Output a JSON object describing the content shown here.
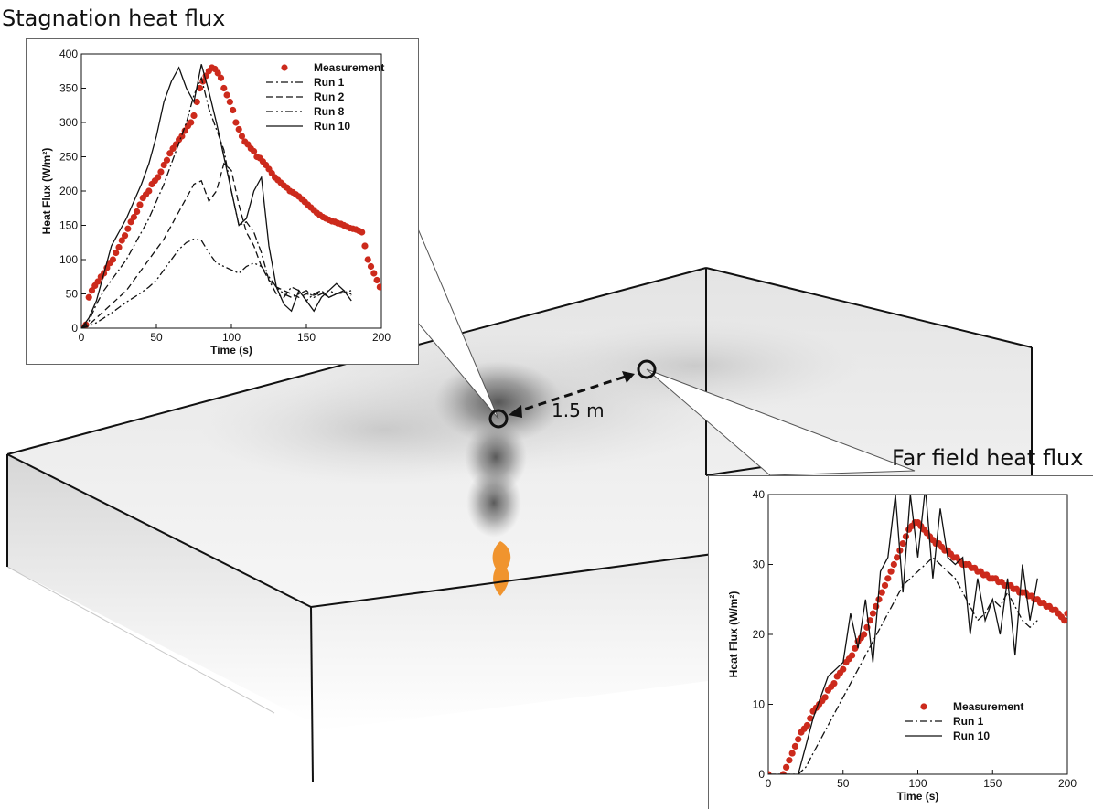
{
  "captions": {
    "stagnation": "Stagnation heat flux",
    "far_field": "Far field heat flux"
  },
  "distance_label": "1.5 m",
  "colors": {
    "measurement": "#cc2a1c",
    "line": "#111111",
    "flame": "#f08a18",
    "smoke": "#555555"
  },
  "chart_data": [
    {
      "type": "line",
      "title": "Stagnation heat flux",
      "xlabel": "Time (s)",
      "ylabel": "Heat Flux (W/m²)",
      "xlim": [
        0,
        200
      ],
      "ylim": [
        0,
        400
      ],
      "xticks": [
        0,
        50,
        100,
        150,
        200
      ],
      "yticks": [
        0,
        50,
        100,
        150,
        200,
        250,
        300,
        350,
        400
      ],
      "legend_position": "top-right",
      "series": [
        {
          "name": "Measurement",
          "style": "markers",
          "x": [
            0,
            3,
            5,
            7,
            9,
            11,
            13,
            15,
            17,
            19,
            21,
            23,
            25,
            27,
            29,
            31,
            33,
            35,
            37,
            39,
            41,
            43,
            45,
            47,
            49,
            51,
            53,
            55,
            57,
            59,
            61,
            63,
            65,
            67,
            69,
            71,
            73,
            75,
            77,
            79,
            81,
            83,
            85,
            87,
            89,
            91,
            93,
            95,
            97,
            99,
            101,
            103,
            105,
            107,
            109,
            111,
            113,
            115,
            117,
            119,
            121,
            123,
            125,
            127,
            129,
            131,
            133,
            135,
            137,
            139,
            141,
            143,
            145,
            147,
            149,
            151,
            153,
            155,
            157,
            159,
            161,
            163,
            165,
            167,
            169,
            171,
            173,
            175,
            177,
            179,
            181,
            183,
            185,
            187,
            189,
            191,
            193,
            195,
            197,
            199
          ],
          "y": [
            0,
            5,
            45,
            55,
            62,
            68,
            75,
            80,
            88,
            95,
            100,
            110,
            118,
            128,
            135,
            145,
            155,
            162,
            170,
            180,
            190,
            195,
            200,
            210,
            215,
            220,
            228,
            238,
            245,
            255,
            262,
            268,
            275,
            280,
            288,
            295,
            300,
            310,
            330,
            350,
            360,
            368,
            375,
            380,
            378,
            372,
            365,
            350,
            340,
            330,
            318,
            300,
            290,
            280,
            272,
            268,
            262,
            258,
            250,
            248,
            243,
            238,
            232,
            226,
            220,
            216,
            212,
            208,
            205,
            200,
            198,
            195,
            192,
            188,
            184,
            180,
            176,
            172,
            168,
            165,
            162,
            160,
            158,
            156,
            155,
            153,
            152,
            150,
            148,
            146,
            145,
            144,
            142,
            140,
            120,
            100,
            90,
            80,
            70,
            60
          ]
        },
        {
          "name": "Run 1",
          "style": "dashdot",
          "x": [
            0,
            5,
            10,
            15,
            20,
            25,
            30,
            35,
            40,
            45,
            50,
            55,
            60,
            65,
            70,
            75,
            80,
            85,
            90,
            95,
            100,
            105,
            110,
            115,
            120,
            125,
            130,
            135,
            140,
            145,
            150,
            155,
            160,
            165,
            170,
            175,
            180
          ],
          "y": [
            0,
            10,
            35,
            55,
            70,
            85,
            100,
            120,
            140,
            160,
            185,
            210,
            240,
            270,
            300,
            340,
            365,
            320,
            290,
            260,
            200,
            150,
            155,
            140,
            110,
            70,
            50,
            45,
            60,
            55,
            40,
            50,
            55,
            45,
            50,
            55,
            48
          ]
        },
        {
          "name": "Run 2",
          "style": "dashed",
          "x": [
            0,
            5,
            10,
            15,
            20,
            25,
            30,
            35,
            40,
            45,
            50,
            55,
            60,
            65,
            70,
            75,
            80,
            85,
            90,
            95,
            100,
            105,
            110,
            115,
            120,
            125,
            130,
            135,
            140,
            145,
            150,
            155,
            160,
            165,
            170,
            175,
            180
          ],
          "y": [
            0,
            5,
            15,
            25,
            35,
            45,
            55,
            70,
            85,
            100,
            115,
            130,
            150,
            170,
            190,
            210,
            215,
            185,
            200,
            240,
            230,
            180,
            140,
            120,
            90,
            70,
            60,
            55,
            50,
            45,
            50,
            48,
            52,
            45,
            50,
            52,
            50
          ]
        },
        {
          "name": "Run 8",
          "style": "dashdotdot",
          "x": [
            0,
            5,
            10,
            15,
            20,
            25,
            30,
            35,
            40,
            45,
            50,
            55,
            60,
            65,
            70,
            75,
            80,
            85,
            90,
            95,
            100,
            105,
            110,
            115,
            120,
            125,
            130,
            135,
            140,
            145,
            150,
            155,
            160,
            165,
            170,
            175,
            180
          ],
          "y": [
            0,
            3,
            8,
            15,
            22,
            30,
            38,
            45,
            52,
            60,
            70,
            85,
            100,
            115,
            125,
            130,
            128,
            110,
            95,
            90,
            85,
            80,
            90,
            95,
            90,
            75,
            60,
            50,
            45,
            50,
            55,
            45,
            50,
            55,
            50,
            52,
            55
          ]
        },
        {
          "name": "Run 10",
          "style": "solid",
          "x": [
            0,
            5,
            10,
            15,
            20,
            25,
            30,
            35,
            40,
            45,
            50,
            55,
            60,
            65,
            70,
            75,
            80,
            85,
            90,
            95,
            100,
            105,
            110,
            115,
            120,
            125,
            130,
            135,
            140,
            145,
            150,
            155,
            160,
            165,
            170,
            175,
            180
          ],
          "y": [
            0,
            15,
            40,
            80,
            120,
            140,
            160,
            185,
            210,
            240,
            280,
            330,
            360,
            380,
            350,
            330,
            385,
            345,
            300,
            250,
            200,
            150,
            160,
            200,
            220,
            120,
            60,
            35,
            25,
            55,
            40,
            25,
            45,
            55,
            65,
            55,
            40
          ]
        }
      ]
    },
    {
      "type": "line",
      "title": "Far field heat flux",
      "xlabel": "Time (s)",
      "ylabel": "Heat Flux (W/m²)",
      "xlim": [
        0,
        200
      ],
      "ylim": [
        0,
        40
      ],
      "xticks": [
        0,
        50,
        100,
        150,
        200
      ],
      "yticks": [
        0,
        10,
        20,
        30,
        40
      ],
      "legend_position": "bottom-right",
      "series": [
        {
          "name": "Measurement",
          "style": "markers",
          "x": [
            0,
            10,
            12,
            14,
            16,
            18,
            20,
            22,
            24,
            26,
            28,
            30,
            32,
            34,
            36,
            38,
            40,
            42,
            44,
            46,
            48,
            50,
            52,
            54,
            56,
            58,
            60,
            62,
            64,
            66,
            68,
            70,
            72,
            74,
            76,
            78,
            80,
            82,
            84,
            86,
            88,
            90,
            92,
            94,
            96,
            98,
            100,
            102,
            104,
            106,
            108,
            110,
            112,
            114,
            116,
            118,
            120,
            122,
            124,
            126,
            128,
            130,
            132,
            134,
            136,
            138,
            140,
            142,
            144,
            146,
            148,
            150,
            152,
            154,
            156,
            158,
            160,
            162,
            164,
            166,
            168,
            170,
            172,
            174,
            176,
            178,
            180,
            182,
            184,
            186,
            188,
            190,
            192,
            194,
            196,
            198,
            200
          ],
          "y": [
            0,
            0,
            1,
            2,
            3,
            4,
            5,
            6,
            6.5,
            7,
            8,
            9,
            9.5,
            10,
            10.5,
            11,
            12,
            12.5,
            13,
            14,
            14.5,
            15,
            16,
            16.5,
            17,
            18,
            19,
            19.5,
            20,
            21,
            22,
            23,
            24,
            25,
            26,
            27,
            28,
            29,
            30,
            31,
            32,
            33,
            34,
            35,
            35.5,
            36,
            36,
            35.5,
            35,
            34.5,
            34,
            33.5,
            33,
            33,
            32.5,
            32,
            32,
            31.5,
            31,
            31,
            30.5,
            30,
            30,
            30,
            29.5,
            29.5,
            29,
            29,
            28.5,
            28.5,
            28,
            28,
            28,
            27.5,
            27.5,
            27,
            27,
            27,
            26.5,
            26.5,
            26,
            26,
            26,
            25.5,
            25.5,
            25,
            25,
            24.5,
            24.5,
            24,
            24,
            23.5,
            23.5,
            23,
            22.5,
            22,
            23
          ]
        },
        {
          "name": "Run 1",
          "style": "dashdot",
          "x": [
            0,
            10,
            20,
            25,
            30,
            35,
            40,
            45,
            50,
            55,
            60,
            65,
            70,
            75,
            80,
            85,
            90,
            95,
            100,
            105,
            110,
            115,
            120,
            125,
            130,
            135,
            140,
            145,
            150,
            155,
            160,
            165,
            170,
            175,
            180
          ],
          "y": [
            0,
            0,
            0,
            1,
            3,
            5,
            7,
            9,
            11,
            13,
            15,
            17,
            19,
            21,
            23,
            25,
            27,
            28,
            29,
            30,
            31,
            30,
            29,
            28,
            26,
            24,
            22,
            23,
            25,
            24,
            26,
            24,
            22,
            21,
            22
          ]
        },
        {
          "name": "Run 10",
          "style": "solid",
          "x": [
            0,
            10,
            20,
            25,
            30,
            35,
            40,
            45,
            50,
            55,
            60,
            65,
            70,
            75,
            80,
            85,
            90,
            95,
            100,
            105,
            110,
            115,
            120,
            125,
            130,
            135,
            140,
            145,
            150,
            155,
            160,
            165,
            170,
            175,
            180
          ],
          "y": [
            0,
            0,
            0,
            4,
            8,
            11,
            14,
            15,
            16,
            23,
            18,
            25,
            16,
            29,
            31,
            40,
            26,
            40,
            31,
            41,
            28,
            38,
            31,
            30,
            31,
            20,
            28,
            22,
            25,
            20,
            28,
            17,
            30,
            22,
            28
          ]
        }
      ]
    }
  ]
}
